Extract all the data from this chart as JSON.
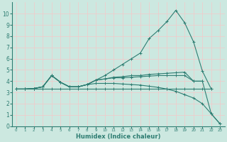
{
  "xlabel": "Humidex (Indice chaleur)",
  "xlim": [
    -0.5,
    23.5
  ],
  "ylim": [
    0,
    11
  ],
  "yticks": [
    0,
    1,
    2,
    3,
    4,
    5,
    6,
    7,
    8,
    9,
    10
  ],
  "xticks": [
    0,
    1,
    2,
    3,
    4,
    5,
    6,
    7,
    8,
    9,
    10,
    11,
    12,
    13,
    14,
    15,
    16,
    17,
    18,
    19,
    20,
    21,
    22,
    23
  ],
  "bg_color": "#cce8e0",
  "line_color": "#2e7d72",
  "grid_color": "#f5c8c8",
  "series": [
    {
      "x": [
        0,
        1,
        2,
        3,
        4,
        5,
        6,
        7,
        8,
        9,
        10,
        11,
        12,
        13,
        14,
        15,
        16,
        17,
        18,
        19,
        20,
        21,
        22
      ],
      "y": [
        3.3,
        3.3,
        3.35,
        3.5,
        4.5,
        3.9,
        3.5,
        3.5,
        3.7,
        4.1,
        4.5,
        5.0,
        5.5,
        6.0,
        6.5,
        7.8,
        8.5,
        9.3,
        10.3,
        9.2,
        7.5,
        4.9,
        3.3
      ]
    },
    {
      "x": [
        0,
        1,
        2,
        3,
        4,
        5,
        6,
        7,
        8,
        9,
        10,
        11,
        12,
        13,
        14,
        15,
        16,
        17,
        18,
        19,
        20,
        21
      ],
      "y": [
        3.3,
        3.3,
        3.35,
        3.5,
        4.5,
        3.9,
        3.5,
        3.5,
        3.7,
        4.1,
        4.2,
        4.35,
        4.4,
        4.5,
        4.5,
        4.6,
        4.65,
        4.7,
        4.75,
        4.8,
        4.0,
        4.0
      ]
    },
    {
      "x": [
        0,
        1,
        2,
        3,
        4,
        5,
        6,
        7,
        8,
        9,
        10,
        11,
        12,
        13,
        14,
        15,
        16,
        17,
        18,
        19,
        20,
        21,
        22,
        23
      ],
      "y": [
        3.3,
        3.3,
        3.35,
        3.5,
        4.5,
        3.9,
        3.5,
        3.5,
        3.7,
        4.1,
        4.2,
        4.3,
        4.3,
        4.35,
        4.4,
        4.45,
        4.5,
        4.5,
        4.5,
        4.5,
        4.0,
        4.0,
        1.1,
        0.2
      ]
    },
    {
      "x": [
        0,
        1,
        2,
        3,
        4,
        5,
        6,
        7,
        8,
        9,
        10,
        11,
        12,
        13,
        14,
        15,
        16,
        17,
        18,
        19,
        20,
        21,
        22,
        23
      ],
      "y": [
        3.3,
        3.3,
        3.35,
        3.5,
        4.5,
        3.9,
        3.5,
        3.5,
        3.7,
        3.8,
        3.8,
        3.8,
        3.75,
        3.7,
        3.65,
        3.55,
        3.45,
        3.3,
        3.1,
        2.8,
        2.5,
        2.0,
        1.1,
        0.2
      ]
    },
    {
      "x": [
        0,
        1,
        2,
        3,
        4,
        5,
        6,
        7,
        8,
        9,
        10,
        11,
        12,
        13,
        14,
        15,
        16,
        17,
        18,
        19,
        20,
        21,
        22
      ],
      "y": [
        3.3,
        3.3,
        3.3,
        3.3,
        3.3,
        3.3,
        3.3,
        3.3,
        3.3,
        3.3,
        3.3,
        3.3,
        3.3,
        3.3,
        3.3,
        3.3,
        3.3,
        3.3,
        3.3,
        3.3,
        3.3,
        3.3,
        3.3
      ]
    }
  ]
}
